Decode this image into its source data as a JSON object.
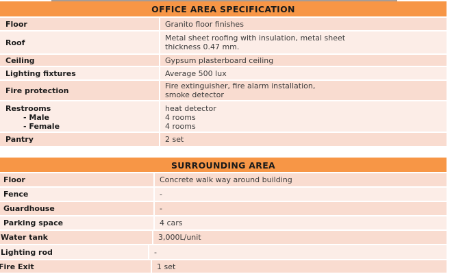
{
  "office": {
    "title": "OFFICE AREA SPECIFICATION",
    "rows": [
      {
        "label": "Floor",
        "value": "Granito floor finishes"
      },
      {
        "label": "Roof",
        "value": "Metal sheet roofing with insulation, metal sheet",
        "value2": "thickness 0.47 mm."
      },
      {
        "label": "Ceiling",
        "value": "Gypsum plasterboard ceiling"
      },
      {
        "label": "Lighting fixtures",
        "value": "Average 500 lux"
      },
      {
        "label": "Fire protection",
        "value": "Fire extinguisher, fire alarm installation,",
        "value2": "smoke detector"
      },
      {
        "label": "Restrooms",
        "sub1": "- Male",
        "sub2": "- Female",
        "value": "heat detector",
        "value2": "4 rooms",
        "value3": "4 rooms"
      },
      {
        "label": "Pantry",
        "value": "2 set"
      }
    ]
  },
  "surrounding": {
    "title": "SURROUNDING AREA",
    "rows": [
      {
        "label": "Floor",
        "value": "Concrete walk way around building"
      },
      {
        "label": "Fence",
        "value": "-"
      },
      {
        "label": "Guardhouse",
        "value": "-"
      },
      {
        "label": "Parking space",
        "value": "4 cars"
      },
      {
        "label": "Water tank",
        "value": "3,000L/unit"
      },
      {
        "label": "Lighting rod",
        "value": "-"
      },
      {
        "label": "Fire Exit",
        "value": "1 set"
      }
    ]
  }
}
